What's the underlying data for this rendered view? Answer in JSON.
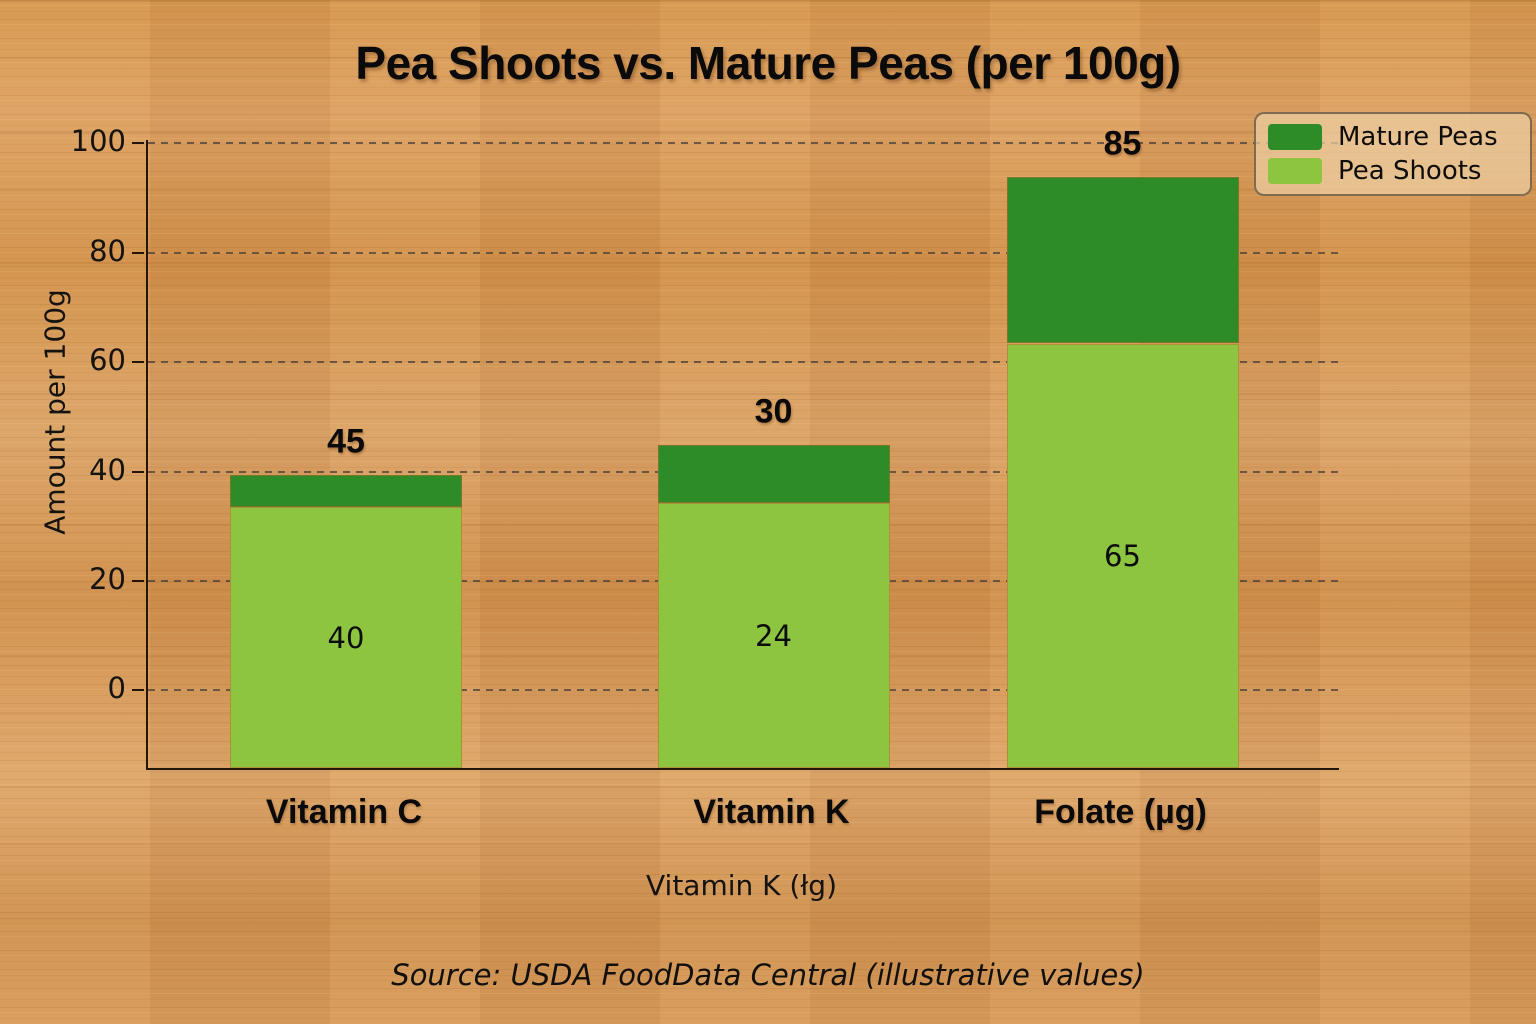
{
  "title": "Pea Shoots vs. Mature Peas (per 100g)",
  "source": "Source: USDA FoodData Central (illustrative values)",
  "axes": {
    "ylabel": "Amount per 100g",
    "xlabel": "Vitamin K (łg)",
    "yticks": [
      0,
      20,
      40,
      60,
      80,
      100
    ],
    "ytick_labels": [
      "0",
      "20",
      "40",
      "60",
      "80",
      "100"
    ],
    "xtick_labels": [
      "Vitamin C",
      "Vitamin K",
      "Folate (µg)"
    ]
  },
  "legend": {
    "position": "upper right",
    "items": [
      {
        "label": "Mature Peas",
        "color": "#2e8c28"
      },
      {
        "label": "Pea Shoots",
        "color": "#8dc540"
      }
    ]
  },
  "chart_data": {
    "type": "bar",
    "stacked": true,
    "title": "Pea Shoots vs. Mature Peas (per 100g)",
    "xlabel": "Vitamin K (łg)",
    "ylabel": "Amount per 100g",
    "categories": [
      "Vitamin C",
      "Vitamin K",
      "Folate (µg)"
    ],
    "series": [
      {
        "name": "Pea Shoots",
        "values": [
          40,
          24,
          65
        ],
        "color": "#8dc540"
      },
      {
        "name": "Mature Peas",
        "values": [
          5,
          6,
          20
        ],
        "color": "#2e8c28"
      }
    ],
    "totals": [
      45,
      30,
      85
    ],
    "segment_labels": [
      "40",
      "24",
      "65"
    ],
    "total_labels": [
      "45",
      "30",
      "85"
    ],
    "ylim": [
      -14.3,
      100.5
    ],
    "grid": "dashed horizontal, behind bars",
    "legend_position": "upper right",
    "rendered_segments": {
      "note": "bar tops as drawn, in axis units above the 0 gridline",
      "baseline": -14.3,
      "bars": [
        {
          "category": "Vitamin C",
          "light_top": 33.5,
          "dark_top": 39.3
        },
        {
          "category": "Vitamin K",
          "light_top": 34.2,
          "dark_top": 44.8
        },
        {
          "category": "Folate (µg)",
          "light_top": 63.4,
          "dark_top": 93.8
        }
      ]
    }
  },
  "colors": {
    "background_wood": "#d6994f",
    "bar_light_green": "#8dc540",
    "bar_dark_green": "#2e8c28",
    "axis_line": "#231607",
    "grid_line": "#46403a",
    "text": "#0d0d0d",
    "legend_background": "rgba(236,206,162,0.72)",
    "legend_border": "#6e5c46"
  }
}
